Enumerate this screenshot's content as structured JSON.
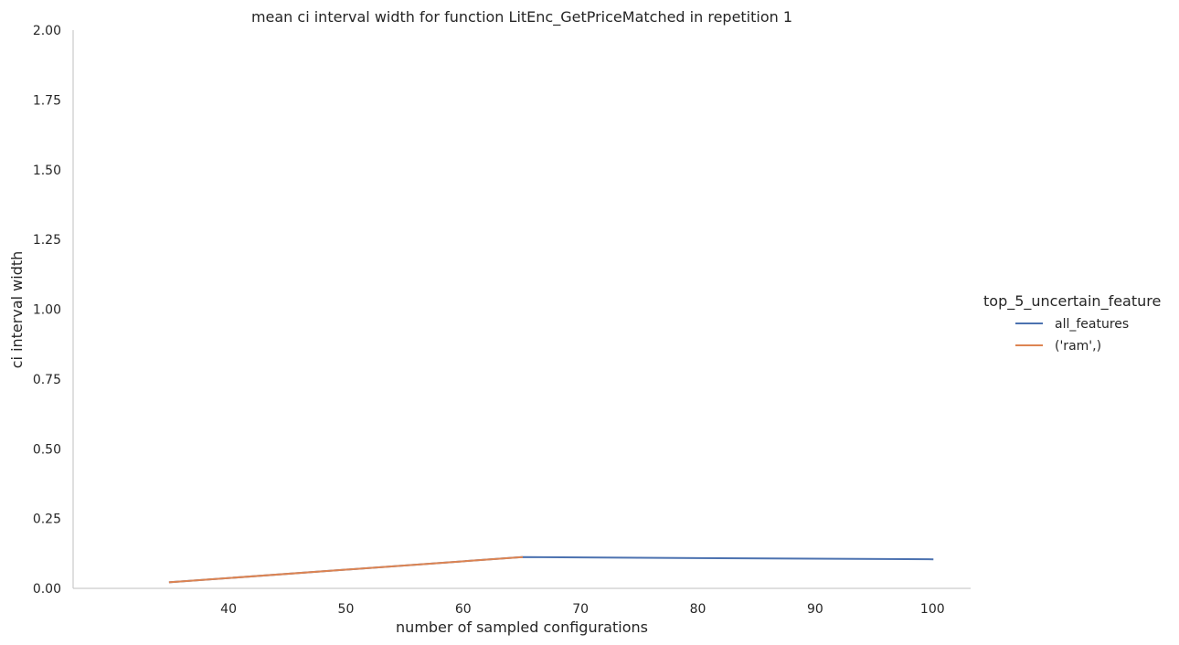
{
  "chart_data": {
    "type": "line",
    "title": "mean ci interval width for function LitEnc_GetPriceMatched in repetition 1",
    "xlabel": "number of sampled configurations",
    "ylabel": "ci interval width",
    "xlim": [
      26.75,
      103.25
    ],
    "ylim": [
      0,
      2
    ],
    "xticks": [
      40,
      50,
      60,
      70,
      80,
      90,
      100
    ],
    "xtick_labels": [
      "40",
      "50",
      "60",
      "70",
      "80",
      "90",
      "100"
    ],
    "yticks": [
      0,
      0.25,
      0.5,
      0.75,
      1.0,
      1.25,
      1.5,
      1.75,
      2.0
    ],
    "ytick_labels": [
      "0.00",
      "0.25",
      "0.50",
      "0.75",
      "1.00",
      "1.25",
      "1.50",
      "1.75",
      "2.00"
    ],
    "grid": false,
    "legend": {
      "title": "top_5_uncertain_feature",
      "placement": "right"
    },
    "series": [
      {
        "name": "all_features",
        "color": "#4c72b0",
        "x": [
          35,
          65,
          100
        ],
        "y": [
          0.022,
          0.112,
          0.104
        ]
      },
      {
        "name": "('ram',)",
        "color": "#dd8452",
        "x": [
          35,
          65
        ],
        "y": [
          0.022,
          0.112
        ]
      }
    ]
  }
}
